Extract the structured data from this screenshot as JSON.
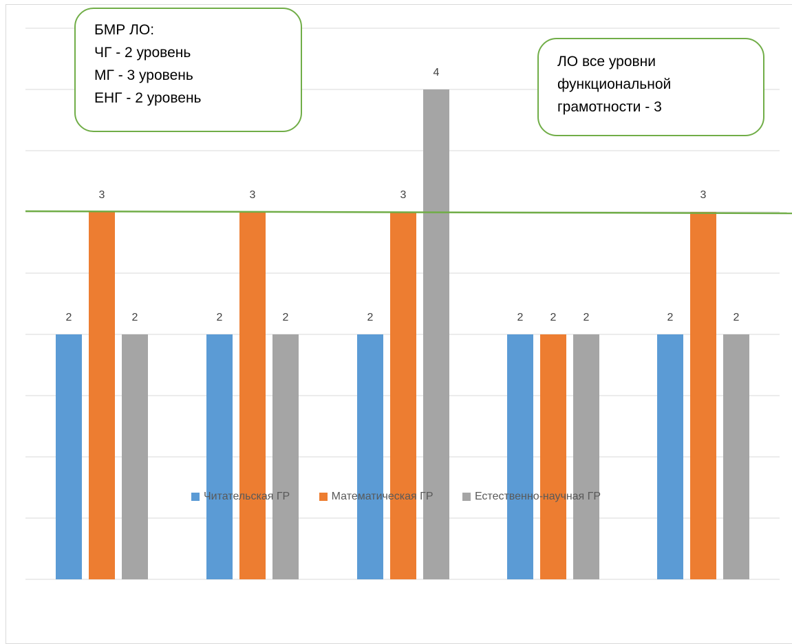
{
  "chart_data": {
    "type": "bar",
    "title": "",
    "xlabel": "",
    "ylabel": "",
    "categories": [
      "",
      "",
      "",
      "",
      ""
    ],
    "ylim": [
      0,
      4.8
    ],
    "gridlines": true,
    "legend_position": "bottom",
    "data_labels": true,
    "series": [
      {
        "name": "Читательская ГР",
        "color": "#5b9bd5",
        "values": [
          2,
          2,
          2,
          2,
          2
        ]
      },
      {
        "name": "Математическая ГР",
        "color": "#ed7d31",
        "values": [
          3,
          3,
          3,
          2,
          3
        ]
      },
      {
        "name": "Естественно-научная ГР",
        "color": "#a5a5a5",
        "values": [
          2,
          2,
          4,
          2,
          2
        ]
      }
    ],
    "reference_line": {
      "value": 3,
      "color": "#70ad47"
    }
  },
  "callouts": {
    "left": {
      "lines": [
        "БМР ЛО:",
        "ЧГ - 2 уровень",
        "МГ - 3 уровень",
        "ЕНГ - 2 уровень"
      ]
    },
    "right": {
      "lines": [
        "ЛО все уровни",
        "функциональной",
        "грамотности - 3"
      ]
    }
  },
  "colors": {
    "gridline": "#d9d9d9",
    "label_text": "#404040",
    "callout_border": "#70ad47"
  }
}
